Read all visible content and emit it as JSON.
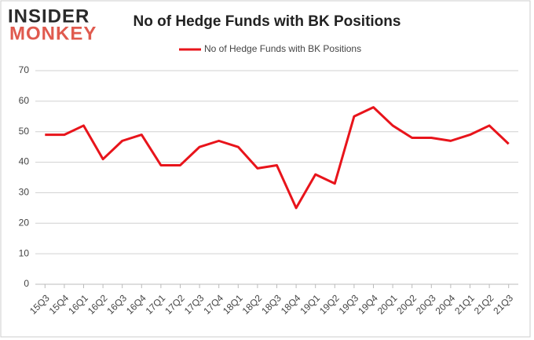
{
  "logo": {
    "line1": "INSIDER",
    "line2": "MONKEY"
  },
  "chart_data": {
    "type": "line",
    "title": "No of Hedge Funds with BK Positions",
    "categories": [
      "15Q3",
      "15Q4",
      "16Q1",
      "16Q2",
      "16Q3",
      "16Q4",
      "17Q1",
      "17Q2",
      "17Q3",
      "17Q4",
      "18Q1",
      "18Q2",
      "18Q3",
      "18Q4",
      "19Q1",
      "19Q2",
      "19Q3",
      "19Q4",
      "20Q1",
      "20Q2",
      "20Q3",
      "20Q4",
      "21Q1",
      "21Q2",
      "21Q3"
    ],
    "series": [
      {
        "name": "No of Hedge Funds with BK Positions",
        "color": "#e8141b",
        "values": [
          49,
          49,
          52,
          41,
          47,
          49,
          39,
          39,
          45,
          47,
          45,
          38,
          39,
          25,
          36,
          33,
          55,
          58,
          52,
          48,
          48,
          47,
          49,
          52,
          46
        ]
      }
    ],
    "ylim": [
      0,
      70
    ],
    "yticks": [
      0,
      10,
      20,
      30,
      40,
      50,
      60,
      70
    ],
    "grid": true,
    "legend": "top"
  }
}
